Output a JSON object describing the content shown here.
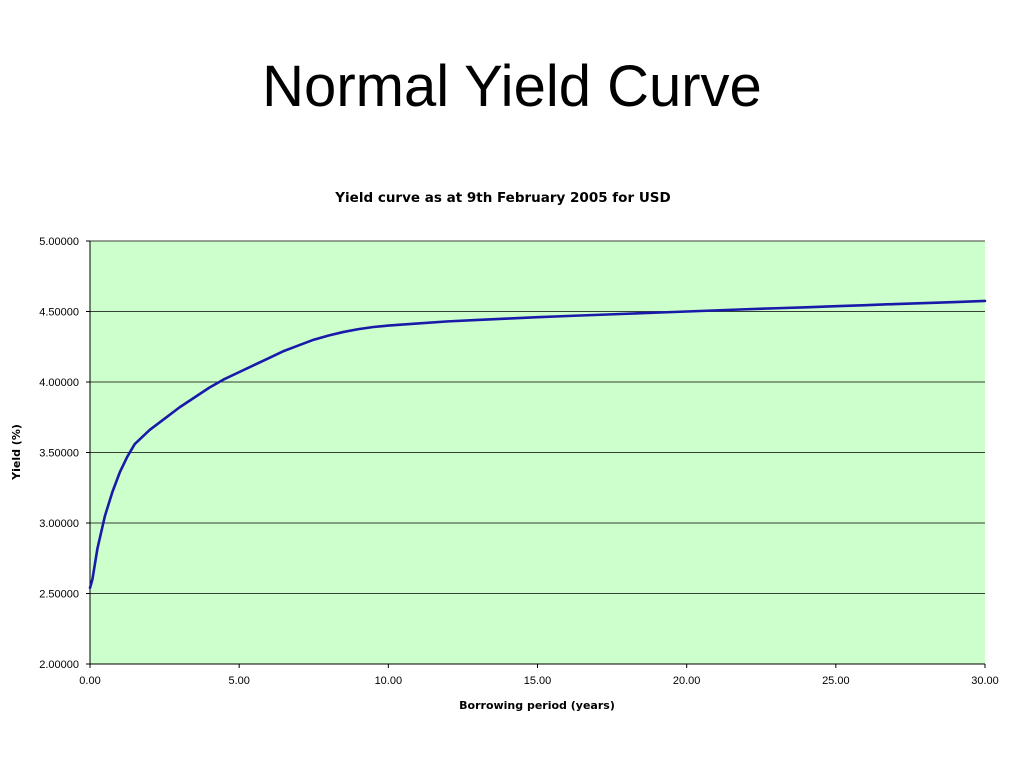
{
  "slide": {
    "title": "Normal Yield Curve"
  },
  "chart_data": {
    "type": "line",
    "title": "Yield curve as at 9th February 2005 for USD",
    "xlabel": "Borrowing period (years)",
    "ylabel": "Yield (%)",
    "xlim": [
      0,
      30
    ],
    "ylim": [
      2.0,
      5.0
    ],
    "x_ticks": [
      "0.00",
      "5.00",
      "10.00",
      "15.00",
      "20.00",
      "25.00",
      "30.00"
    ],
    "y_ticks": [
      "2.00000",
      "2.50000",
      "3.00000",
      "3.50000",
      "4.00000",
      "4.50000",
      "5.00000"
    ],
    "grid": "horizontal",
    "legend": "none",
    "plot_background": "#ccffcc",
    "line_color": "#1a1aaa",
    "grid_color": "#000000",
    "series": [
      {
        "x": [
          0.0,
          0.08,
          0.25,
          0.5,
          0.75,
          1.0,
          1.25,
          1.5,
          2.0,
          2.5,
          3.0,
          3.5,
          4.0,
          4.5,
          5.0,
          5.5,
          6.0,
          6.5,
          7.0,
          7.5,
          8.0,
          8.5,
          9.0,
          9.5,
          10.0,
          11.0,
          12.0,
          13.0,
          14.0,
          15.0,
          16.0,
          17.0,
          18.0,
          19.0,
          20.0,
          21.0,
          22.0,
          23.0,
          24.0,
          25.0,
          26.0,
          27.0,
          28.0,
          29.0,
          30.0
        ],
        "values": [
          2.54,
          2.6,
          2.82,
          3.05,
          3.22,
          3.36,
          3.47,
          3.56,
          3.66,
          3.74,
          3.82,
          3.89,
          3.96,
          4.02,
          4.07,
          4.12,
          4.17,
          4.22,
          4.26,
          4.3,
          4.33,
          4.355,
          4.375,
          4.39,
          4.4,
          4.415,
          4.43,
          4.44,
          4.45,
          4.46,
          4.468,
          4.476,
          4.484,
          4.492,
          4.5,
          4.508,
          4.516,
          4.523,
          4.53,
          4.538,
          4.545,
          4.553,
          4.56,
          4.567,
          4.575
        ]
      }
    ]
  }
}
